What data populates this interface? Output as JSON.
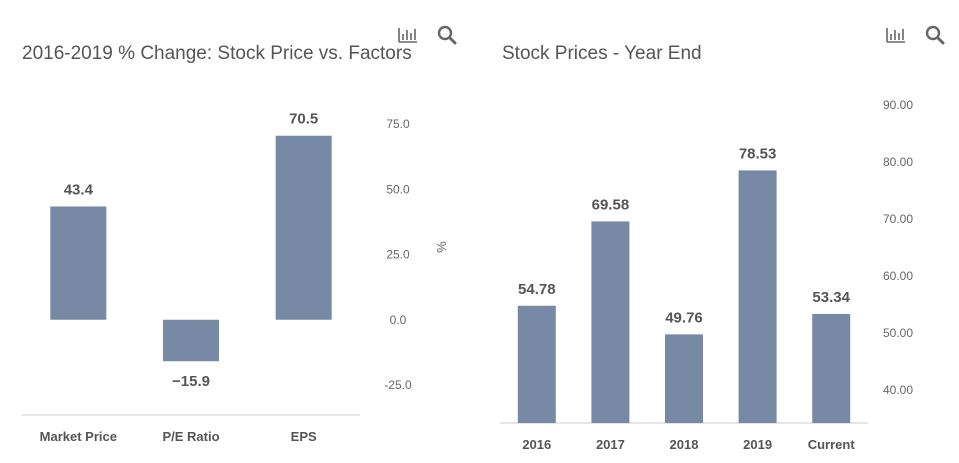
{
  "colors": {
    "bar": "#7889a6",
    "axis_line": "#cccccc",
    "label": "#555555",
    "tick": "#666666",
    "title": "#555555",
    "icon": "#666666"
  },
  "left": {
    "title": "2016-2019 % Change: Stock Price vs. Factors",
    "icons": [
      "bar-chart-icon",
      "search-icon"
    ]
  },
  "right": {
    "title": "Stock Prices - Year End",
    "icons": [
      "bar-chart-icon",
      "search-icon"
    ]
  },
  "chart_data": [
    {
      "type": "bar",
      "title": "2016-2019 % Change: Stock Price vs. Factors",
      "categories": [
        "Market Price",
        "P/E Ratio",
        "EPS"
      ],
      "values": [
        43.4,
        -15.9,
        70.5
      ],
      "value_labels": [
        "43.4",
        "−15.9",
        "70.5"
      ],
      "ylabel": "%",
      "yaxis_position": "right",
      "ylim": [
        -25,
        75
      ],
      "yticks": [
        "75.0",
        "50.0",
        "25.0",
        "0.0",
        "-25.0"
      ],
      "ytick_values": [
        75,
        50,
        25,
        0,
        -25
      ],
      "grid": false,
      "legend": "none"
    },
    {
      "type": "bar",
      "title": "Stock Prices - Year End",
      "categories": [
        "2016",
        "2017",
        "2018",
        "2019",
        "Current"
      ],
      "values": [
        54.78,
        69.58,
        49.76,
        78.53,
        53.34
      ],
      "value_labels": [
        "54.78",
        "69.58",
        "49.76",
        "78.53",
        "53.34"
      ],
      "ylabel": "",
      "yaxis_position": "right",
      "ylim": [
        35,
        90
      ],
      "yticks": [
        "90.00",
        "80.00",
        "70.00",
        "60.00",
        "50.00",
        "40.00"
      ],
      "ytick_values": [
        90,
        80,
        70,
        60,
        50,
        40
      ],
      "grid": false,
      "legend": "none"
    }
  ]
}
